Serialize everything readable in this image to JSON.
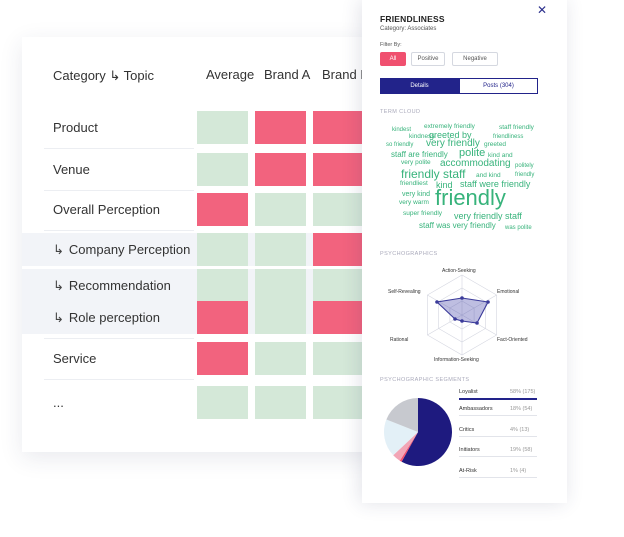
{
  "table": {
    "header": {
      "category": "Category ↳ Topic",
      "cols": [
        "Average",
        "Brand A",
        "Brand I"
      ]
    },
    "rows": [
      {
        "label": "Product",
        "indent": false,
        "cells": [
          "good",
          "bad",
          "bad"
        ]
      },
      {
        "label": "Venue",
        "indent": false,
        "cells": [
          "good",
          "bad",
          "bad"
        ]
      },
      {
        "label": "Overall Perception",
        "indent": false,
        "cells": [
          "bad",
          "good",
          "good"
        ]
      },
      {
        "label": "Company Perception",
        "indent": true,
        "cells": [
          "good",
          "good",
          "bad"
        ]
      },
      {
        "label": "Recommendation",
        "indent": true,
        "cells": [
          "good",
          "good",
          "good"
        ]
      },
      {
        "label": "Role perception",
        "indent": true,
        "cells": [
          "bad",
          "good",
          "bad"
        ]
      },
      {
        "label": "Service",
        "indent": false,
        "cells": [
          "bad",
          "good",
          "good"
        ]
      },
      {
        "label": "...",
        "indent": false,
        "cells": [
          "good",
          "good",
          "good"
        ]
      }
    ],
    "indent_arrow": "↳",
    "colors": {
      "good": "#d4e8d8",
      "bad": "#f2637e"
    }
  },
  "panel": {
    "title": "FRIENDLINESS",
    "close": "✕",
    "subtitle": "Category: Associates",
    "filter_label": "Filter By:",
    "filters": [
      "All",
      "Positive",
      "Negative"
    ],
    "tabs": [
      "Details",
      "Posts (304)"
    ],
    "term_cloud_label": "TERM CLOUD",
    "terms": [
      "kindest",
      "extremely friendly",
      "staff friendly",
      "kindness",
      "greeted by",
      "friendliness",
      "so friendly",
      "very friendly",
      "greeted",
      "staff are friendly",
      "polite",
      "kind and",
      "very polite",
      "accommodating",
      "politely",
      "friendly staff",
      "and kind",
      "friendly",
      "friendliest",
      "kind",
      "staff were friendly",
      "very kind",
      "friendly",
      "very warm",
      "super friendly",
      "very friendly staff",
      "staff was very friendly",
      "was polite"
    ],
    "psychographics_label": "PSYCHOGRAPHICS",
    "radar_axes": [
      "Action-Seeking",
      "Emotional",
      "Fact-Oriented",
      "Information-Seeking",
      "Rational",
      "Self-Revealing"
    ],
    "segments_label": "PSYCHOGRAPHIC SEGMENTS",
    "segments": [
      {
        "name": "Loyalist",
        "value": "58% (175)",
        "pct": 58,
        "color": "#1e1a7f"
      },
      {
        "name": "Ambassadors",
        "value": "18% (54)",
        "pct": 18,
        "color": "#e3f0f7"
      },
      {
        "name": "Critics",
        "value": "4% (13)",
        "pct": 4,
        "color": "#f2a5b6"
      },
      {
        "name": "Initiators",
        "value": "19% (58)",
        "pct": 19,
        "color": "#c7c9cf"
      },
      {
        "name": "At-Risk",
        "value": "1% (4)",
        "pct": 1,
        "color": "#f0506f"
      }
    ],
    "accent": "#22238a",
    "alert": "#f0506f",
    "term_color": "#37b37b"
  }
}
